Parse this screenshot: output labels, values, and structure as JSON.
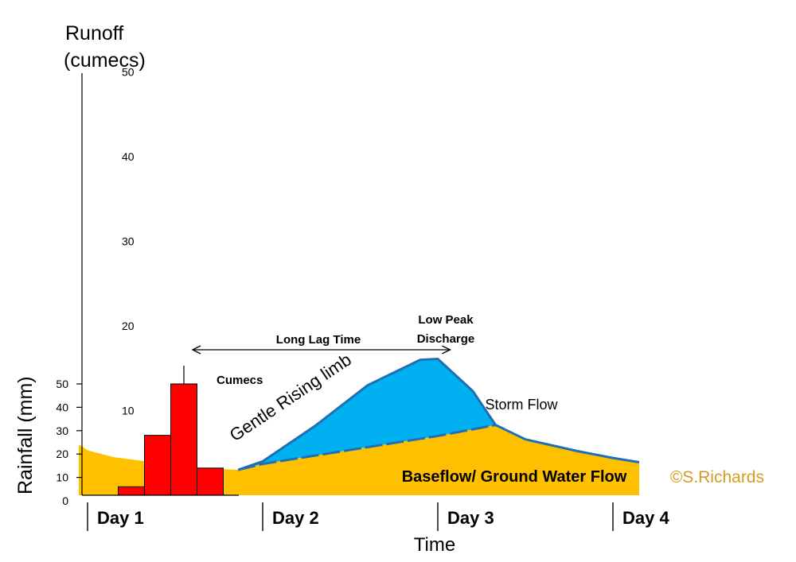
{
  "chart_data": {
    "type": "area",
    "title": "",
    "xlabel": "Time",
    "x_ticks": [
      "Day 1",
      "Day 2",
      "Day 3",
      "Day 4"
    ],
    "runoff_axis": {
      "label_line1": "Runoff",
      "label_line2": "(cumecs)",
      "ticks": [
        "10",
        "20",
        "30",
        "40",
        "50"
      ],
      "ylim": [
        0,
        50
      ]
    },
    "rainfall_axis": {
      "label": "Rainfall (mm)",
      "ticks": [
        "0",
        "10",
        "20",
        "30",
        "40",
        "50"
      ],
      "ylim": [
        0,
        50
      ]
    },
    "rainfall_bars": {
      "x": [
        1.25,
        1.4,
        1.55,
        1.7
      ],
      "values": [
        6,
        28,
        50,
        14
      ],
      "color": "#ff0000"
    },
    "baseflow": {
      "name": "Baseflow/ Ground Water Flow",
      "color": "#ffc000",
      "x": [
        0.95,
        1.0,
        1.15,
        1.3,
        1.43,
        1.55,
        1.65,
        1.75,
        1.86,
        2.0,
        3.0,
        3.33
      ],
      "y": [
        6.0,
        5.3,
        4.5,
        4.1,
        3.7,
        3.4,
        3.2,
        3.1,
        3.0,
        3.7,
        7.0,
        8.3
      ]
    },
    "storm_flow": {
      "name": "Storm Flow",
      "color": "#00b0f0",
      "line_color": "#1f6fb5",
      "x": [
        1.86,
        2.0,
        2.3,
        2.6,
        2.9,
        3.0,
        3.2,
        3.33,
        3.5,
        3.8,
        4.0,
        4.15
      ],
      "y": [
        3.0,
        4.0,
        8.2,
        13.0,
        16.0,
        16.1,
        12.3,
        8.3,
        6.6,
        5.2,
        4.4,
        3.9
      ]
    },
    "lag_time": {
      "label": "Long Lag Time",
      "from_x": 1.6,
      "to_x": 3.07
    },
    "annotations": {
      "cumecs": "Cumecs",
      "peak_line1": "Low Peak",
      "peak_line2": "Discharge",
      "rising_limb": "Gentle Rising limb",
      "storm_flow": "Storm Flow",
      "baseflow": "Baseflow/ Ground Water Flow"
    },
    "watermark": "©S.Richards"
  }
}
